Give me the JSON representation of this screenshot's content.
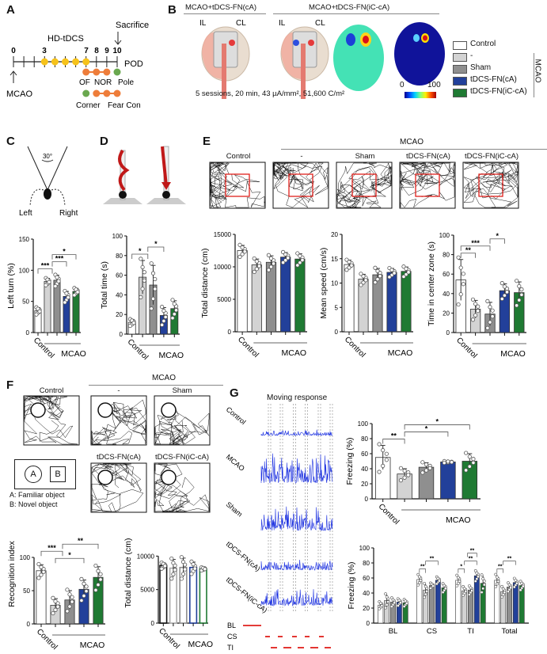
{
  "panels": [
    "A",
    "B",
    "C",
    "D",
    "E",
    "F",
    "G"
  ],
  "colors": {
    "Control": "#ffffff",
    "-": "#d3d3d3",
    "Sham": "#8f8f8f",
    "tDCS-FN(cA)": "#22409a",
    "tDCS-FN(iC-cA)": "#1f7a33",
    "orange": "#ee7d3a",
    "yellow": "#f6c21a",
    "green": "#6aa84f",
    "trace": "#1a2fe0",
    "red": "#e0201b"
  },
  "timeline": {
    "days": [
      "0",
      "3",
      "7",
      "8",
      "9",
      "10"
    ],
    "hd_tdcs": "HD-tDCS",
    "sacrifice": "Sacrifice",
    "pod": "POD",
    "mcao": "MCAO",
    "tests_row1": [
      "OF",
      "NOR",
      "Pole"
    ],
    "tests_row2": [
      "Corner",
      "Fear Con"
    ]
  },
  "stimulation": {
    "title_ca": "MCAO+tDCS-FN(cA)",
    "title_icca": "MCAO+tDCS-FN(iC-cA)",
    "il": "IL",
    "cl": "CL",
    "protocol": "5 sessions, 20 min, 43 µA/mm², 51,600 C/m²",
    "colorbar_min": "0",
    "colorbar_max": "100"
  },
  "legend": {
    "items": [
      "Control",
      "-",
      "Sham",
      "tDCS-FN(cA)",
      "tDCS-FN(iC-cA)"
    ],
    "group_label": "MCAO"
  },
  "corner_test": {
    "angle": "30°",
    "left": "Left",
    "right": "Right"
  },
  "open_field": {
    "group_label": "MCAO",
    "labels": [
      "Control",
      "-",
      "Sham",
      "tDCS-FN(cA)",
      "tDCS-FN(iC-cA)"
    ]
  },
  "nor": {
    "group_label": "MCAO",
    "labels": [
      "Control",
      "-",
      "Sham",
      "tDCS-FN(cA)",
      "tDCS-FN(iC-cA)"
    ],
    "obj_a": "A",
    "obj_b": "B",
    "legend_a": "A: Familiar object",
    "legend_b": "B: Novel object"
  },
  "fear": {
    "title": "Moving response",
    "rows": [
      "Control",
      "MCAO",
      "Sham",
      "tDCS-FN(cA)",
      "tDCS-FN(iC-cA)"
    ],
    "phases": [
      "BL",
      "CS",
      "TI"
    ]
  },
  "chart_data": [
    {
      "type": "bar",
      "ylabel": "Left turn (%)",
      "ylim": [
        0,
        150
      ],
      "yticks": [
        0,
        50,
        100,
        150
      ],
      "categories": [
        "Control",
        "-",
        "Sham",
        "tDCS-FN(cA)",
        "tDCS-FN(iC-cA)"
      ],
      "xlabel_first": "Control",
      "group_label": "MCAO",
      "values": [
        35,
        82,
        84,
        58,
        66
      ],
      "errors": [
        5,
        5,
        8,
        8,
        5
      ],
      "significance": [
        {
          "between": [
            0,
            1.5
          ],
          "label": "***"
        },
        {
          "between": [
            1.5,
            3
          ],
          "label": "***"
        },
        {
          "between": [
            1.5,
            4
          ],
          "label": "*"
        }
      ]
    },
    {
      "type": "bar",
      "ylabel": "Total time (s)",
      "ylim": [
        0,
        100
      ],
      "yticks": [
        0,
        20,
        40,
        60,
        80,
        100
      ],
      "categories": [
        "Control",
        "-",
        "Sham",
        "tDCS-FN(cA)",
        "tDCS-FN(iC-cA)"
      ],
      "xlabel_first": "Control",
      "group_label": "MCAO",
      "values": [
        12,
        58,
        50,
        19,
        26
      ],
      "errors": [
        3,
        17,
        20,
        8,
        8
      ],
      "significance": [
        {
          "between": [
            0,
            1.5
          ],
          "label": "*"
        },
        {
          "between": [
            1.5,
            3
          ],
          "label": "*"
        }
      ]
    },
    {
      "type": "bar",
      "ylabel": "Total distance (cm)",
      "ylim": [
        0,
        15000
      ],
      "yticks": [
        0,
        5000,
        10000,
        15000
      ],
      "categories": [
        "Control",
        "-",
        "Sham",
        "tDCS-FN(cA)",
        "tDCS-FN(iC-cA)"
      ],
      "xlabel_first": "Control",
      "group_label": "MCAO",
      "values": [
        12500,
        10300,
        10700,
        11500,
        11200
      ],
      "errors": [
        800,
        900,
        1000,
        700,
        800
      ],
      "significance": []
    },
    {
      "type": "bar",
      "ylabel": "Mean speed (cm/s)",
      "ylim": [
        0,
        20
      ],
      "yticks": [
        0,
        5,
        10,
        15,
        20
      ],
      "categories": [
        "Control",
        "-",
        "Sham",
        "tDCS-FN(cA)",
        "tDCS-FN(iC-cA)"
      ],
      "xlabel_first": "Control",
      "group_label": "MCAO",
      "values": [
        13.8,
        10.8,
        11.7,
        12.2,
        12.4
      ],
      "errors": [
        0.9,
        1.0,
        1.3,
        0.8,
        0.9
      ],
      "significance": []
    },
    {
      "type": "bar",
      "ylabel": "Time in center zone (s)",
      "ylim": [
        0,
        100
      ],
      "yticks": [
        0,
        20,
        40,
        60,
        80,
        100
      ],
      "categories": [
        "Control",
        "-",
        "Sham",
        "tDCS-FN(cA)",
        "tDCS-FN(iC-cA)"
      ],
      "xlabel_first": "Control",
      "group_label": "MCAO",
      "values": [
        54,
        24,
        19,
        43,
        41
      ],
      "errors": [
        21,
        9,
        12,
        7,
        11
      ],
      "significance": [
        {
          "between": [
            0,
            1
          ],
          "label": "**"
        },
        {
          "between": [
            0,
            2
          ],
          "label": "***"
        },
        {
          "between": [
            2,
            3
          ],
          "label": "*"
        }
      ]
    },
    {
      "type": "bar",
      "ylabel": "Recognition index",
      "ylim": [
        0,
        150
      ],
      "yticks": [
        0,
        50,
        100
      ],
      "categories": [
        "Control",
        "-",
        "Sham",
        "tDCS-FN(cA)",
        "tDCS-FN(iC-cA)"
      ],
      "xlabel_first": "Control",
      "group_label": "MCAO",
      "values": [
        80,
        28,
        36,
        52,
        70
      ],
      "errors": [
        9,
        10,
        14,
        14,
        16
      ],
      "significance": [
        {
          "between": [
            1,
            3
          ],
          "label": "*"
        },
        {
          "between": [
            0,
            1.5
          ],
          "label": "***"
        },
        {
          "between": [
            1.5,
            4
          ],
          "label": "**"
        }
      ]
    },
    {
      "type": "bar",
      "style": "outline",
      "ylabel": "Total distance (cm)",
      "ylim": [
        0,
        15000
      ],
      "yticks": [
        0,
        5000,
        10000
      ],
      "categories": [
        "Control",
        "-",
        "Sham",
        "tDCS-FN(cA)",
        "tDCS-FN(iC-cA)"
      ],
      "xlabel_first": "Control",
      "group_label": "MCAO",
      "values": [
        8600,
        8200,
        8300,
        8300,
        8100
      ],
      "errors": [
        400,
        1300,
        1400,
        800,
        200
      ],
      "significance": []
    },
    {
      "type": "bar",
      "ylabel": "Freezing (%)",
      "ylim": [
        0,
        100
      ],
      "yticks": [
        0,
        20,
        40,
        60,
        80,
        100
      ],
      "categories": [
        "Control",
        "-",
        "Sham",
        "tDCS-FN(cA)",
        "tDCS-FN(iC-cA)"
      ],
      "xlabel_first": "Control",
      "group_label": "MCAO",
      "values": [
        55,
        33,
        42,
        49,
        50
      ],
      "errors": [
        16,
        7,
        6,
        1,
        10
      ],
      "significance": [
        {
          "between": [
            0,
            1
          ],
          "label": "**"
        },
        {
          "between": [
            1,
            3
          ],
          "label": "*"
        },
        {
          "between": [
            1,
            4
          ],
          "label": "*"
        }
      ]
    },
    {
      "type": "grouped-bar",
      "ylabel": "Freezing (%)",
      "ylim": [
        0,
        100
      ],
      "yticks": [
        0,
        20,
        40,
        60,
        80,
        100
      ],
      "categories": [
        "BL",
        "CS",
        "TI",
        "Total"
      ],
      "series": [
        {
          "name": "Control",
          "values": [
            24,
            58,
            57,
            57
          ]
        },
        {
          "name": "-",
          "values": [
            30,
            44,
            43,
            42
          ]
        },
        {
          "name": "Sham",
          "values": [
            28,
            50,
            44,
            48
          ]
        },
        {
          "name": "tDCS-FN(cA)",
          "values": [
            28,
            57,
            63,
            54
          ]
        },
        {
          "name": "tDCS-FN(iC-cA)",
          "values": [
            27,
            47,
            53,
            50
          ]
        }
      ],
      "errors": [
        [
          4,
          6,
          6,
          7
        ],
        [
          8,
          8,
          5,
          6
        ],
        [
          5,
          3,
          5,
          5
        ],
        [
          4,
          4,
          6,
          5
        ],
        [
          4,
          5,
          10,
          5
        ]
      ],
      "significance": [
        {
          "group": 1,
          "between": [
            0,
            1
          ],
          "label": "**"
        },
        {
          "group": 1,
          "between": [
            1,
            3
          ],
          "label": "**"
        },
        {
          "group": 2,
          "between": [
            0,
            1
          ],
          "label": "*"
        },
        {
          "group": 2,
          "between": [
            1,
            3
          ],
          "label": "**"
        },
        {
          "group": 2,
          "between": [
            1.5,
            3
          ],
          "label": "**"
        },
        {
          "group": 3,
          "between": [
            0,
            1
          ],
          "label": "**"
        },
        {
          "group": 3,
          "between": [
            1,
            3
          ],
          "label": "**"
        }
      ]
    }
  ]
}
